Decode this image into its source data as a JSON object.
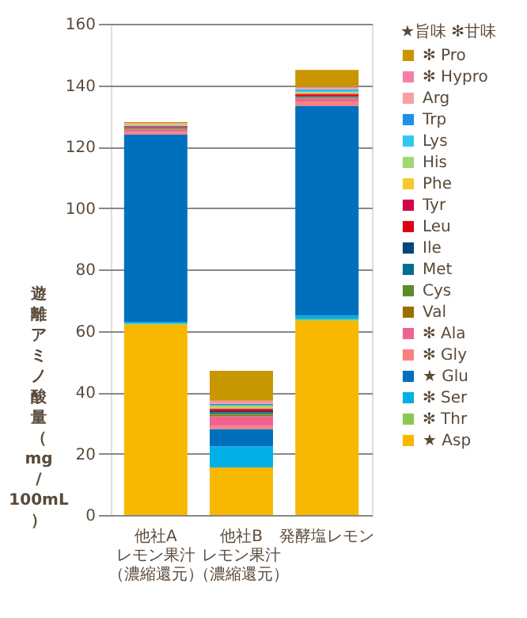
{
  "chart_data": {
    "type": "bar",
    "stacked": true,
    "ylabel": "遊離アミノ酸量（mg/100mL）",
    "legend_title": "★旨味 ✻甘味",
    "legend": "right",
    "grid": "y",
    "categories": [
      "他社Aレモン果汁（濃縮還元）",
      "他社Bレモン果汁（濃縮還元）",
      "発酵塩レモン"
    ],
    "ylim": [
      0,
      160
    ],
    "yticks": [
      0,
      20,
      40,
      60,
      80,
      100,
      120,
      140,
      160
    ],
    "series": [
      {
        "name": "★ Asp",
        "color": "#f8b800",
        "values": [
          62,
          15.5,
          63.3
        ]
      },
      {
        "name": "✻ Thr",
        "color": "#8cc850",
        "values": [
          0.3,
          null,
          0.5
        ]
      },
      {
        "name": "✻ Ser",
        "color": "#00aee8",
        "values": [
          0.7,
          6.9,
          1.2
        ]
      },
      {
        "name": "★ Glu",
        "color": "#006fbe",
        "values": [
          61,
          5.6,
          68.3
        ]
      },
      {
        "name": "✻ Gly",
        "color": "#f88080",
        "values": [
          0.8,
          1.0,
          1.2
        ]
      },
      {
        "name": "✻ Ala",
        "color": "#f06292",
        "values": [
          0.8,
          3.1,
          1.1
        ]
      },
      {
        "name": "Val",
        "color": "#9a7000",
        "values": [
          0.3,
          0.5,
          0.3
        ]
      },
      {
        "name": "Cys",
        "color": "#5a8c28",
        "values": [
          0.1,
          0.4,
          0.1
        ]
      },
      {
        "name": "Met",
        "color": "#006e8c",
        "values": [
          0.1,
          0.4,
          0.1
        ]
      },
      {
        "name": "Ile",
        "color": "#00467a",
        "values": [
          0.2,
          0.4,
          0.3
        ]
      },
      {
        "name": "Leu",
        "color": "#e00010",
        "values": [
          0.3,
          0.6,
          0.6
        ]
      },
      {
        "name": "Tyr",
        "color": "#d0004a",
        "values": [
          0.2,
          0.3,
          0.2
        ]
      },
      {
        "name": "Phe",
        "color": "#f8c830",
        "values": [
          0.2,
          0.4,
          0.4
        ]
      },
      {
        "name": "His",
        "color": "#a0d870",
        "values": [
          0.1,
          0.5,
          0.2
        ]
      },
      {
        "name": "Lys",
        "color": "#30c8f0",
        "values": [
          0.1,
          0.3,
          0.6
        ]
      },
      {
        "name": "Trp",
        "color": "#1e90e8",
        "values": [
          0.1,
          0.2,
          0.3
        ]
      },
      {
        "name": "Arg",
        "color": "#f8a0a0",
        "values": [
          0.2,
          0.8,
          0.3
        ]
      },
      {
        "name": "✻ Hypro",
        "color": "#f580a8",
        "values": [
          0.1,
          0.3,
          0.4
        ]
      },
      {
        "name": "✻ Pro",
        "color": "#c89600",
        "values": [
          0.4,
          9.8,
          5.6
        ]
      }
    ]
  }
}
